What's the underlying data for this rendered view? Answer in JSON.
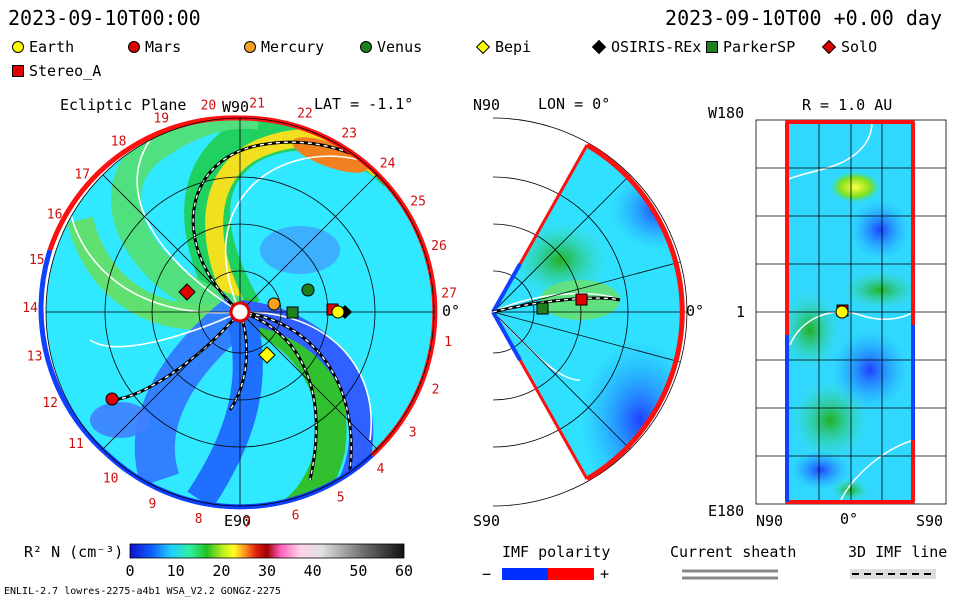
{
  "header": {
    "date_left": "2023-09-10T00:00",
    "date_right": "2023-09-10T00 +0.00 day"
  },
  "legend": [
    {
      "label": "Earth",
      "color": "#ffff00",
      "shape": "circle"
    },
    {
      "label": "Mars",
      "color": "#e00000",
      "shape": "circle"
    },
    {
      "label": "Mercury",
      "color": "#f4a020",
      "shape": "circle"
    },
    {
      "label": "Venus",
      "color": "#208020",
      "shape": "circle"
    },
    {
      "label": "Bepi",
      "color": "#ffff00",
      "shape": "diamond"
    },
    {
      "label": "OSIRIS-REx",
      "color": "#000000",
      "shape": "diamond"
    },
    {
      "label": "ParkerSP",
      "color": "#208020",
      "shape": "square"
    },
    {
      "label": "SolO",
      "color": "#e00000",
      "shape": "diamond"
    },
    {
      "label": "Stereo_A",
      "color": "#e00000",
      "shape": "square"
    }
  ],
  "panel_ecliptic": {
    "title": "Ecliptic Plane",
    "lat": "LAT = -1.1°",
    "top_label": "W90",
    "bottom_label": "E90",
    "right_label": "0°",
    "rotation_numbers": [
      "20",
      "21",
      "22",
      "23",
      "24",
      "25",
      "26",
      "27",
      "1",
      "2",
      "3",
      "4",
      "5",
      "6",
      "7",
      "8",
      "9",
      "10",
      "11",
      "12",
      "13",
      "14",
      "15",
      "16",
      "17",
      "18",
      "19"
    ]
  },
  "panel_meridional": {
    "top_label": "N90",
    "lon": "LON = 0°",
    "bottom_label": "S90",
    "right_label": "0°"
  },
  "panel_radial": {
    "r_label": "R = 1.0 AU",
    "y_top": "W180",
    "y_mid": "1",
    "y_bottom": "E180",
    "x_left": "N90",
    "x_mid": "0°",
    "x_right": "S90"
  },
  "colorbar": {
    "label": "R² N (cm⁻³)",
    "ticks": [
      "0",
      "10",
      "20",
      "30",
      "40",
      "50",
      "60"
    ]
  },
  "imf": {
    "title": "IMF polarity",
    "minus": "−",
    "plus": "+",
    "neg_color": "#0030ff",
    "pos_color": "#ff0000"
  },
  "current_sheath": {
    "title": "Current sheath"
  },
  "imf_line": {
    "title": "3D IMF line"
  },
  "footer": {
    "model": "ENLIL-2.7 lowres-2275-a4b1 WSA_V2.2 GONGZ-2275"
  }
}
